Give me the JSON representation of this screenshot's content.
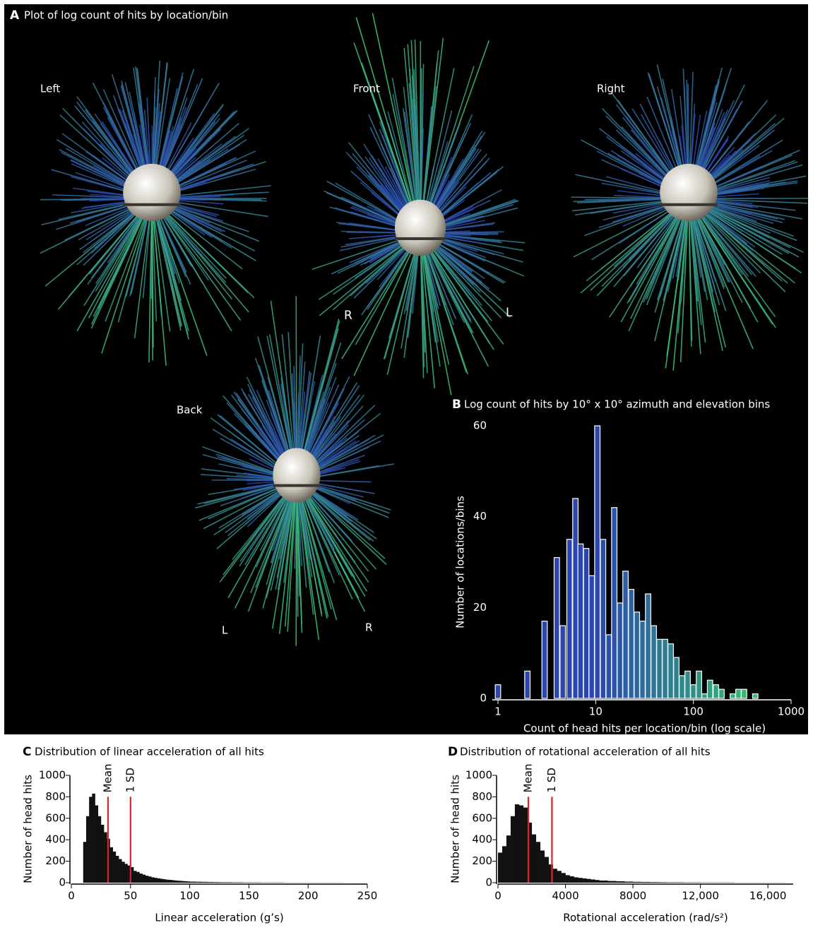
{
  "panel_a": {
    "letter": "A",
    "title": "Plot of log count of hits by location/bin",
    "views": [
      "Left",
      "Front",
      "Right",
      "Back"
    ],
    "side_labels": [
      "R",
      "L",
      "L",
      "R"
    ]
  },
  "chart_data": [
    {
      "type": "bar",
      "panel": "B",
      "title": "Log count of hits by 10° x 10° azimuth and elevation bins",
      "x_label": "Count of head hits per location/bin (log scale)",
      "y_label": "Number of locations/bins",
      "xscale": "log",
      "x": [
        1,
        2,
        3,
        4,
        4.6,
        5.4,
        6.2,
        7.0,
        8.0,
        9.1,
        10.4,
        11.9,
        13.6,
        15.5,
        17.7,
        20.2,
        23.1,
        26.4,
        30.1,
        34.4,
        39.3,
        44.9,
        51.3,
        58.6,
        66.9,
        76.4,
        87.3,
        99.7,
        114,
        130,
        148,
        170,
        194,
        221,
        253,
        289,
        330,
        377,
        430,
        491
      ],
      "values": [
        3,
        6,
        17,
        31,
        16,
        35,
        44,
        34,
        33,
        27,
        60,
        35,
        14,
        42,
        21,
        28,
        24,
        19,
        17,
        23,
        16,
        13,
        13,
        12,
        9,
        5,
        6,
        3,
        6,
        1,
        4,
        3,
        2,
        0,
        1,
        2,
        2,
        0,
        1,
        0
      ],
      "xlim": [
        1,
        1000
      ],
      "xticks": [
        1,
        10,
        100,
        1000
      ],
      "ylim": [
        0,
        60
      ],
      "yticks": [
        0,
        20,
        40,
        60
      ],
      "colors": [
        "#2c46b0",
        "#35c46a"
      ]
    },
    {
      "type": "histogram",
      "panel": "C",
      "title": "Distribution of linear acceleration of all hits",
      "x_label": "Linear acceleration (g’s)",
      "y_label": "Number of head hits",
      "bins": [
        10,
        12.5,
        15,
        17.5,
        20,
        22.5,
        25,
        27.5,
        30,
        32.5,
        35,
        37.5,
        40,
        42.5,
        45,
        47.5,
        50,
        52.5,
        55,
        57.5,
        60,
        62.5,
        65,
        67.5,
        70,
        72.5,
        75,
        77.5,
        80,
        82.5,
        85,
        87.5,
        90,
        92.5,
        95,
        97.5,
        100,
        105,
        110,
        115,
        120,
        125,
        130,
        135,
        140,
        145,
        150,
        155,
        160,
        165,
        170,
        175,
        180,
        185,
        190,
        195,
        200,
        205,
        210,
        215,
        220,
        225,
        230
      ],
      "values": [
        380,
        620,
        800,
        830,
        720,
        620,
        540,
        470,
        410,
        330,
        290,
        250,
        220,
        195,
        175,
        160,
        145,
        110,
        100,
        85,
        75,
        65,
        58,
        50,
        45,
        40,
        36,
        32,
        28,
        26,
        23,
        20,
        18,
        16,
        14,
        12,
        10,
        9,
        8,
        7,
        6,
        5,
        5,
        4,
        4,
        3,
        3,
        3,
        2,
        2,
        2,
        2,
        1,
        1,
        1,
        1,
        1,
        1,
        1,
        1,
        1,
        1
      ],
      "color": "#111111",
      "xlim": [
        0,
        250
      ],
      "xticks": [
        0,
        50,
        100,
        150,
        200,
        250
      ],
      "ylim": [
        0,
        1000
      ],
      "yticks": [
        0,
        200,
        400,
        600,
        800,
        1000
      ],
      "annotations": [
        {
          "x": 31,
          "y": 800,
          "label": "Mean"
        },
        {
          "x": 50,
          "y": 800,
          "label": "1 SD"
        }
      ],
      "annotation_color": "#e0202a"
    },
    {
      "type": "histogram",
      "panel": "D",
      "title": "Distribution of rotational acceleration of all hits",
      "x_label": "Rotational acceleration (rad/s²)",
      "y_label": "Number of head hits",
      "bins": [
        0,
        250,
        500,
        750,
        1000,
        1250,
        1500,
        1750,
        2000,
        2250,
        2500,
        2750,
        3000,
        3250,
        3500,
        3750,
        4000,
        4250,
        4500,
        4750,
        5000,
        5250,
        5500,
        5750,
        6000,
        6500,
        7000,
        7500,
        8000,
        8500,
        9000,
        9500,
        10000,
        10500,
        11000,
        11500,
        12000,
        12500,
        13000,
        13500,
        14000,
        14500,
        15000,
        15500,
        16000,
        16500,
        17000
      ],
      "values": [
        280,
        340,
        440,
        620,
        730,
        720,
        700,
        560,
        450,
        380,
        300,
        240,
        170,
        130,
        110,
        90,
        70,
        60,
        50,
        45,
        40,
        35,
        30,
        25,
        20,
        16,
        13,
        10,
        8,
        7,
        6,
        5,
        4,
        4,
        3,
        3,
        2,
        2,
        2,
        2,
        1,
        1,
        1,
        1,
        1,
        1
      ],
      "color": "#111111",
      "xlim": [
        0,
        17500
      ],
      "xticks": [
        0,
        4000,
        8000,
        {
          "value": 12000,
          "label": "12,000"
        },
        {
          "value": 16000,
          "label": "16,000"
        }
      ],
      "ylim": [
        0,
        1000
      ],
      "yticks": [
        0,
        200,
        400,
        600,
        800,
        1000
      ],
      "annotations": [
        {
          "x": 1800,
          "y": 800,
          "label": "Mean"
        },
        {
          "x": 3200,
          "y": 800,
          "label": "1 SD"
        }
      ],
      "annotation_color": "#e0202a"
    }
  ]
}
